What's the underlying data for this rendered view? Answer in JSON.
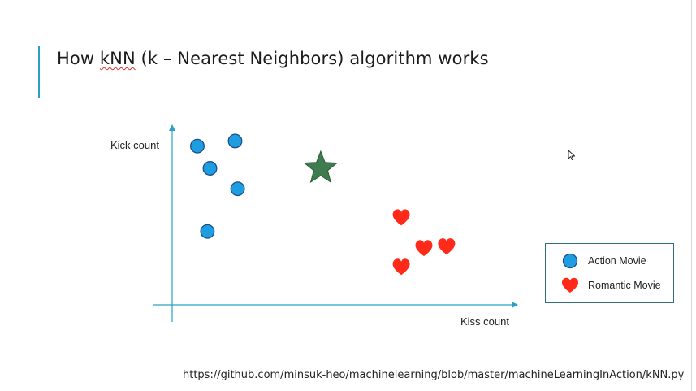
{
  "slide": {
    "title_pre": "How ",
    "title_spell": "kNN",
    "title_post": " (k – Nearest Neighbors) algorithm works",
    "url": "https://github.com/minsuk-heo/machinelearning/blob/master/machineLearningInAction/kNN.py"
  },
  "axes": {
    "ylabel": "Kick count",
    "xlabel": "Kiss count"
  },
  "legend": {
    "action_label": "Action Movie",
    "romantic_label": "Romantic Movie"
  },
  "colors": {
    "action": "#1e9ee0",
    "romantic": "#ff2a1a",
    "star": "#3e7c4f",
    "axis": "#2aa0c8",
    "accent": "#2aa0c8",
    "legend_border": "#2f6f7e"
  },
  "icons": {
    "action": "blue-circle-icon",
    "romantic": "red-heart-icon",
    "unknown": "green-star-icon",
    "cursor": "mouse-pointer-icon"
  },
  "chart_data": {
    "type": "scatter",
    "xlabel": "Kiss count",
    "ylabel": "Kick count",
    "series": [
      {
        "name": "Action Movie",
        "marker": "circle",
        "points": [
          [
            1.0,
            9.3
          ],
          [
            1.5,
            8.0
          ],
          [
            2.5,
            9.6
          ],
          [
            2.6,
            6.8
          ],
          [
            1.4,
            4.3
          ]
        ]
      },
      {
        "name": "Romantic Movie",
        "marker": "heart",
        "points": [
          [
            9.1,
            5.1
          ],
          [
            10.0,
            3.3
          ],
          [
            10.9,
            3.4
          ],
          [
            9.1,
            2.2
          ]
        ]
      },
      {
        "name": "",
        "marker": "star",
        "points": [
          [
            5.9,
            8.0
          ]
        ]
      }
    ],
    "xlim": [
      0,
      13
    ],
    "ylim": [
      0,
      11
    ],
    "grid": false,
    "legend_position": "right"
  }
}
